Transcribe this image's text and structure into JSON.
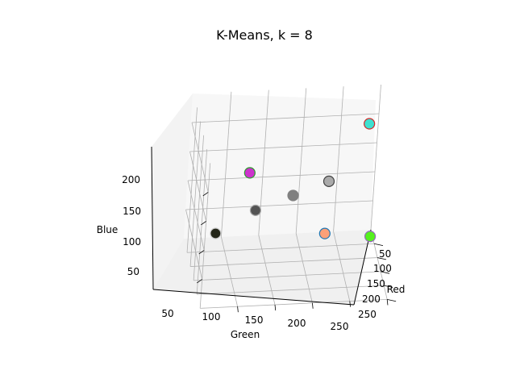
{
  "chart_data": {
    "type": "scatter",
    "projection": "3d",
    "title": "K-Means, k = 8",
    "xlabel": "Red",
    "ylabel": "Green",
    "zlabel": "Blue",
    "x_ticks": [
      "50",
      "100",
      "150",
      "200",
      "250"
    ],
    "y_ticks": [
      "50",
      "100",
      "150",
      "200",
      "250"
    ],
    "z_ticks": [
      "50",
      "100",
      "150",
      "200"
    ],
    "grid": true,
    "points": [
      {
        "red": 63,
        "green": 231,
        "blue": 214,
        "fill": "#40e0d0",
        "edge": "#d62728"
      },
      {
        "red": 215,
        "green": 58,
        "blue": 213,
        "fill": "#cc33cc",
        "edge": "#2ca02c"
      },
      {
        "red": 170,
        "green": 170,
        "blue": 170,
        "fill": "#aaaaaa",
        "edge": "#444444"
      },
      {
        "red": 128,
        "green": 128,
        "blue": 128,
        "fill": "#808080",
        "edge": "#808080"
      },
      {
        "red": 84,
        "green": 84,
        "blue": 84,
        "fill": "#545454",
        "edge": "#aaaaaa"
      },
      {
        "red": 36,
        "green": 38,
        "blue": 24,
        "fill": "#242618",
        "edge": "#cccccc"
      },
      {
        "red": 252,
        "green": 160,
        "blue": 120,
        "fill": "#fca078",
        "edge": "#1f77b4"
      },
      {
        "red": 85,
        "green": 240,
        "blue": 30,
        "fill": "#55f01e",
        "edge": "#9467bd"
      }
    ]
  }
}
